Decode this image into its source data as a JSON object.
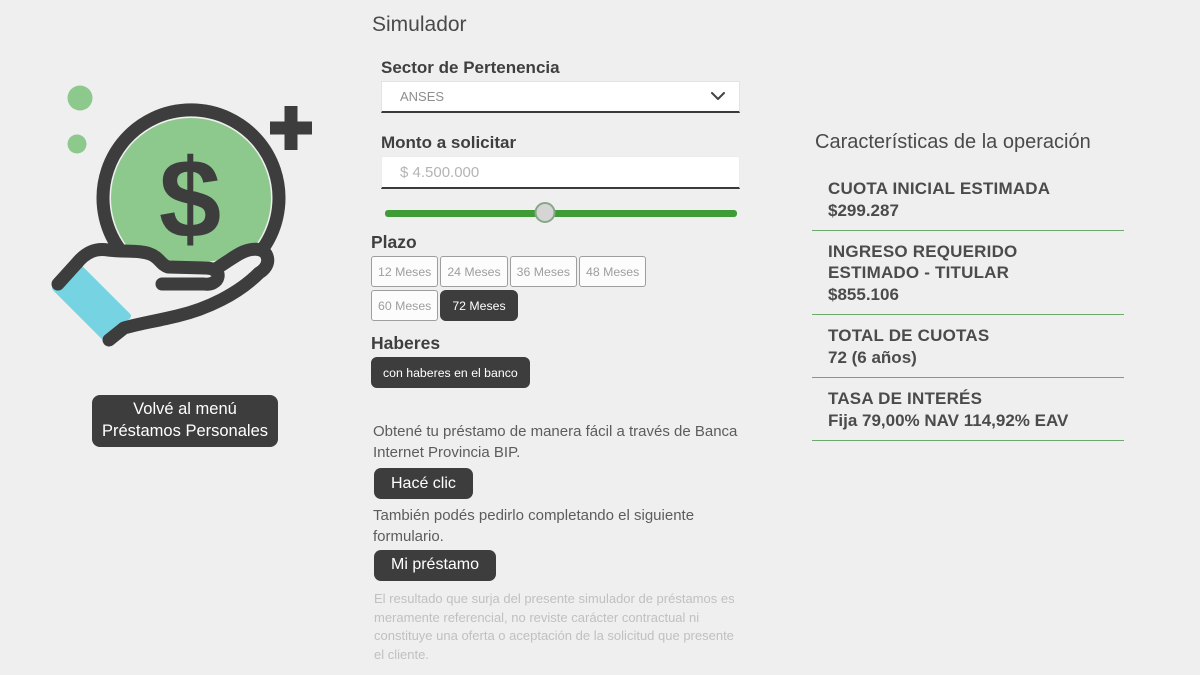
{
  "colors": {
    "background": "#efefef",
    "dark_button": "#3d3d3d",
    "accent_green": "#3f9b35",
    "separator_green": "#6caa6c",
    "coin_green": "#8dc88d",
    "cuff_teal": "#76d4e2",
    "text_dark": "#4a4a4a"
  },
  "icons": {
    "select_chevron": "chevron-down-icon",
    "illustration": "hand-holding-coin-with-dollar-plus-and-dots"
  },
  "left": {
    "illustration_dollar": "$",
    "back_button_line1": "Volvé al menú",
    "back_button_line2": "Préstamos Personales"
  },
  "simulator": {
    "title": "Simulador",
    "sector": {
      "label": "Sector de Pertenencia",
      "selected": "ANSES"
    },
    "monto": {
      "label": "Monto a solicitar",
      "value": "$ 4.500.000",
      "slider_percent": 45.5
    },
    "plazo": {
      "label": "Plazo",
      "options": [
        "12 Meses",
        "24 Meses",
        "36 Meses",
        "48 Meses",
        "60 Meses",
        "72 Meses"
      ],
      "selected": "72 Meses"
    },
    "haberes": {
      "label": "Haberes",
      "options": [
        "con haberes en el banco"
      ],
      "selected": "con haberes en el banco"
    },
    "bip_text": "Obtené tu préstamo de manera fácil a través de Banca Internet Provincia BIP.",
    "bip_button": "Hacé clic",
    "form_text": "También podés pedirlo completando el siguiente formulario.",
    "form_button": "Mi préstamo",
    "disclaimer": "El resultado que surja del presente simulador de préstamos es meramente referencial, no reviste carácter contractual ni constituye una oferta o aceptación de la solicitud que presente el cliente."
  },
  "results": {
    "title": "Características de la operación",
    "rows": [
      {
        "label": "CUOTA INICIAL ESTIMADA",
        "value": "$299.287"
      },
      {
        "label": "INGRESO REQUERIDO ESTIMADO - TITULAR",
        "value": "$855.106"
      },
      {
        "label": "TOTAL DE CUOTAS",
        "value": "72 (6 años)"
      },
      {
        "label": "TASA DE INTERÉS",
        "value": "Fija 79,00% NAV 114,92% EAV"
      }
    ]
  }
}
